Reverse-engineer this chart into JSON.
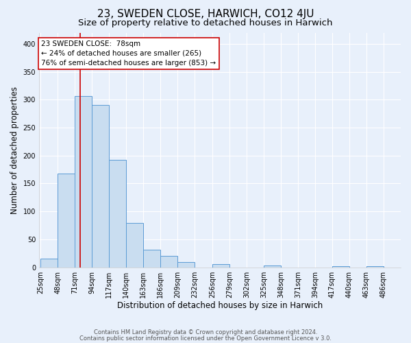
{
  "title": "23, SWEDEN CLOSE, HARWICH, CO12 4JU",
  "subtitle": "Size of property relative to detached houses in Harwich",
  "xlabel": "Distribution of detached houses by size in Harwich",
  "ylabel": "Number of detached properties",
  "footer_line1": "Contains HM Land Registry data © Crown copyright and database right 2024.",
  "footer_line2": "Contains public sector information licensed under the Open Government Licence v 3.0.",
  "bin_labels": [
    "25sqm",
    "48sqm",
    "71sqm",
    "94sqm",
    "117sqm",
    "140sqm",
    "163sqm",
    "186sqm",
    "209sqm",
    "232sqm",
    "256sqm",
    "279sqm",
    "302sqm",
    "325sqm",
    "348sqm",
    "371sqm",
    "394sqm",
    "417sqm",
    "440sqm",
    "463sqm",
    "486sqm"
  ],
  "bar_values": [
    16,
    168,
    307,
    290,
    192,
    79,
    32,
    20,
    10,
    0,
    6,
    0,
    0,
    3,
    0,
    0,
    0,
    2,
    0,
    2,
    0
  ],
  "bin_edges": [
    25,
    48,
    71,
    94,
    117,
    140,
    163,
    186,
    209,
    232,
    256,
    279,
    302,
    325,
    348,
    371,
    394,
    417,
    440,
    463,
    486,
    509
  ],
  "bar_color": "#c9ddf0",
  "bar_edge_color": "#5b9bd5",
  "vline_x": 78,
  "vline_color": "#cc0000",
  "annot_line1": "23 SWEDEN CLOSE:  78sqm",
  "annot_line2": "← 24% of detached houses are smaller (265)",
  "annot_line3": "76% of semi-detached houses are larger (853) →",
  "annot_box_facecolor": "#ffffff",
  "annot_box_edgecolor": "#cc0000",
  "ylim": [
    0,
    420
  ],
  "yticks": [
    0,
    50,
    100,
    150,
    200,
    250,
    300,
    350,
    400
  ],
  "background_color": "#e8f0fb",
  "axes_bg_color": "#e8f0fb",
  "grid_color": "#ffffff",
  "title_fontsize": 11,
  "subtitle_fontsize": 9.5,
  "tick_fontsize": 7,
  "ylabel_fontsize": 8.5,
  "xlabel_fontsize": 8.5
}
